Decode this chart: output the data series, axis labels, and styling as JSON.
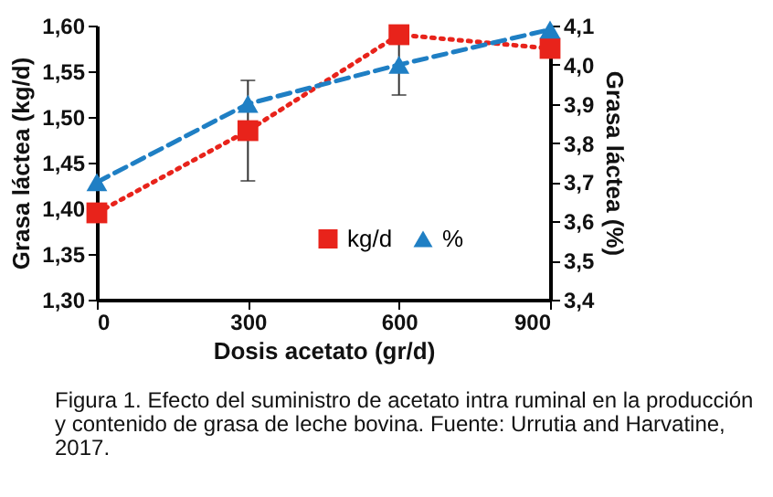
{
  "chart_data": {
    "type": "line",
    "xlabel": "Dosis acetato (gr/d)",
    "ylabel": "Grasa láctea (kg/d)",
    "y2label": "Grasa láctea (%)",
    "x": [
      0,
      300,
      600,
      900
    ],
    "series": [
      {
        "name": "kg/d",
        "color": "#e8231b",
        "values": [
          1.395,
          1.485,
          1.59,
          1.575
        ],
        "errors": [
          null,
          0.055,
          [
            1.524,
            1.6
          ],
          null
        ],
        "marker": "square",
        "line_style": "dotted"
      },
      {
        "name": "%",
        "color": "#1f7fc4",
        "values": [
          3.7,
          3.9,
          4.0,
          4.09
        ],
        "axis": "y2",
        "marker": "triangle",
        "line_style": "dashed"
      }
    ],
    "xlim": [
      0,
      900
    ],
    "xticks": [
      0,
      300,
      600,
      900
    ],
    "ylim": [
      1.3,
      1.6
    ],
    "yticks": [
      {
        "value": 1.3,
        "label": "1,30"
      },
      {
        "value": 1.35,
        "label": "1,35"
      },
      {
        "value": 1.4,
        "label": "1,40"
      },
      {
        "value": 1.45,
        "label": "1,45"
      },
      {
        "value": 1.5,
        "label": "1,50"
      },
      {
        "value": 1.55,
        "label": "1,55"
      },
      {
        "value": 1.6,
        "label": "1,60"
      }
    ],
    "y2lim": [
      3.4,
      4.1
    ],
    "y2ticks": [
      {
        "value": 3.4,
        "label": "3,4"
      },
      {
        "value": 3.5,
        "label": "3,5"
      },
      {
        "value": 3.6,
        "label": "3,6"
      },
      {
        "value": 3.7,
        "label": "3,7"
      },
      {
        "value": 3.8,
        "label": "3,8"
      },
      {
        "value": 3.9,
        "label": "3,9"
      },
      {
        "value": 4.0,
        "label": "4,0"
      },
      {
        "value": 4.1,
        "label": "4,1"
      }
    ],
    "legend": "bottom right",
    "grid": false,
    "annotations": [
      "Figura 1. Efecto del suministro de acetato intra ruminal en la producción y contenido de grasa de leche bovina. Fuente: Urrutia and Harvatine, 2017."
    ]
  }
}
